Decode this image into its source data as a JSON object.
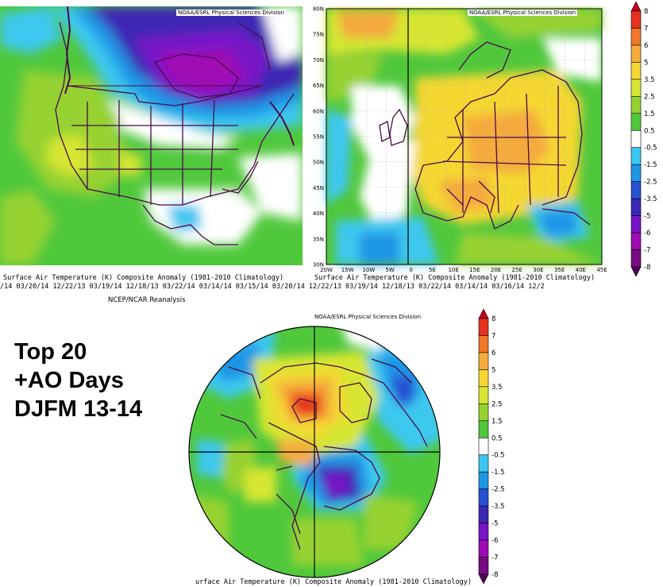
{
  "credits": {
    "top_left": "NOAA/ESRL Physical Sciences Division",
    "top_right": "NOAA/ESRL Physical Sciences Division",
    "bottom": "NOAA/ESRL Physical Sciences Division"
  },
  "captions": {
    "top_left": "Surface Air Temperature (K) Composite Anomaly (1981-2010 Climatology)",
    "top_right": "Surface Air Temperature (K) Composite Anomaly (1981-2010 Climatology)",
    "dates_line": "/14 03/20/14 12/22/13 03/19/14 12/18/13 03/22/14 03/14/14 03/15/14 03/20/14 12/22/13 03/19/14 12/18/13 03/22/14 03/14/14 03/16/14 12/2",
    "reanalysis": "NCEP/NCAR Reanalysis",
    "bottom": "urface Air Temperature (K) Composite Anomaly (1981-2010 Climatology)"
  },
  "title_block": {
    "line1": "Top 20",
    "line2": "+AO Days",
    "line3": "DJFM 13-14"
  },
  "europe_axes": {
    "lat_ticks": [
      "80N",
      "75N",
      "70N",
      "65N",
      "60N",
      "55N",
      "50N",
      "45N",
      "40N",
      "35N",
      "30N"
    ],
    "lon_ticks": [
      "20W",
      "15W",
      "10W",
      "5W",
      "0",
      "5E",
      "10E",
      "15E",
      "20E",
      "25E",
      "30E",
      "35E",
      "40E",
      "45E"
    ]
  },
  "colorbar": {
    "unit": "K",
    "labels": [
      "8",
      "7",
      "6",
      "5",
      "3.5",
      "2.5",
      "1.5",
      "0.5",
      "-0.5",
      "-1.5",
      "-2.5",
      "-3.5",
      "-5",
      "-6",
      "-7",
      "-8"
    ],
    "colors": [
      "#c8001e",
      "#e6321e",
      "#f07828",
      "#f5aa3c",
      "#f5d732",
      "#d7e632",
      "#96d232",
      "#50c83c",
      "#ffffff",
      "#3cc8f0",
      "#1e96e6",
      "#2850d2",
      "#3c28b4",
      "#7814c8",
      "#a00ab4",
      "#780a82",
      "#50005a"
    ]
  }
}
